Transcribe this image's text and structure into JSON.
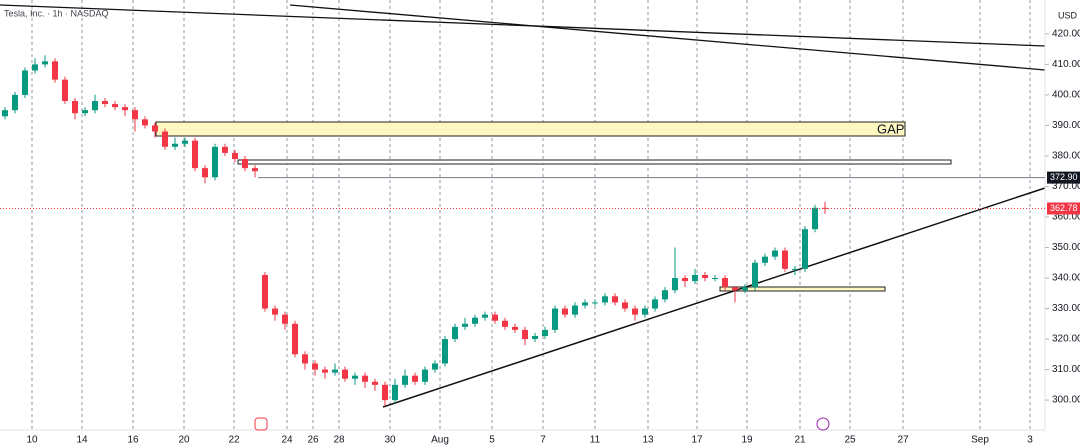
{
  "chart_data": {
    "type": "candlestick",
    "title": "Tesla, Inc. · 1h · NASDAQ",
    "currency": "USD",
    "xlim": [
      0,
      209
    ],
    "xticks": [
      {
        "value": 6.4,
        "label": "10"
      },
      {
        "value": 16.4,
        "label": "14"
      },
      {
        "value": 26.6,
        "label": "16"
      },
      {
        "value": 36.8,
        "label": "20"
      },
      {
        "value": 46.8,
        "label": "22"
      },
      {
        "value": 57.4,
        "label": "24"
      },
      {
        "value": 62.6,
        "label": "26"
      },
      {
        "value": 67.8,
        "label": "28"
      },
      {
        "value": 78,
        "label": "30"
      },
      {
        "value": 88,
        "label": "Aug"
      },
      {
        "value": 98.4,
        "label": "5"
      },
      {
        "value": 108.6,
        "label": "7"
      },
      {
        "value": 119,
        "label": "11"
      },
      {
        "value": 129.6,
        "label": "13"
      },
      {
        "value": 139.4,
        "label": "17"
      },
      {
        "value": 149.4,
        "label": "19"
      },
      {
        "value": 160,
        "label": "21"
      },
      {
        "value": 170,
        "label": "25"
      },
      {
        "value": 180.6,
        "label": "27"
      },
      {
        "value": 196,
        "label": "Sep"
      },
      {
        "value": 206,
        "label": "3"
      }
    ],
    "ylim": [
      290.2,
      431.1
    ],
    "yticks": [
      {
        "value": 300,
        "label": "300.00"
      },
      {
        "value": 310,
        "label": "310.00"
      },
      {
        "value": 320,
        "label": "320.00"
      },
      {
        "value": 330,
        "label": "330.00"
      },
      {
        "value": 340,
        "label": "340.00"
      },
      {
        "value": 350,
        "label": "350.00"
      },
      {
        "value": 360,
        "label": "360.00"
      },
      {
        "value": 370,
        "label": "370.00"
      },
      {
        "value": 380,
        "label": "380.00"
      },
      {
        "value": 390,
        "label": "390.00"
      },
      {
        "value": 400,
        "label": "400.00"
      },
      {
        "value": 410,
        "label": "410.00"
      },
      {
        "value": 420,
        "label": "420.00"
      }
    ],
    "grid": true,
    "up_color": "#089981",
    "down_color": "#f23645",
    "x": [
      1,
      3,
      5,
      7,
      9,
      11,
      13,
      15,
      17,
      19,
      21,
      23,
      25,
      27,
      29,
      31,
      33,
      35,
      37,
      39,
      41,
      43,
      45,
      47,
      49,
      51,
      53,
      55,
      57,
      59,
      61,
      63,
      65,
      67,
      69,
      71,
      73,
      75,
      77,
      79,
      81,
      83,
      85,
      87,
      89,
      91,
      93,
      95,
      97,
      99,
      101,
      103,
      105,
      107,
      109,
      111,
      113,
      115,
      117,
      119,
      121,
      123,
      125,
      127,
      129,
      131,
      133,
      135,
      137,
      139,
      141,
      143,
      145,
      147,
      149,
      151,
      153,
      155,
      157,
      159,
      161,
      163,
      165
    ],
    "open": [
      393,
      395,
      400,
      408,
      410,
      411,
      405,
      398,
      394,
      395,
      398,
      397,
      396,
      395,
      392,
      390,
      388,
      383,
      384,
      385,
      376,
      373,
      383,
      381,
      379,
      376,
      341,
      330,
      328,
      325,
      315,
      312,
      310,
      309,
      310,
      307,
      308,
      306,
      305,
      300,
      305,
      308,
      306,
      310,
      312,
      320,
      324,
      325,
      327,
      328,
      326,
      324,
      323,
      320,
      321,
      323,
      330,
      328,
      331,
      332,
      332,
      334,
      332,
      330,
      328,
      330,
      333,
      336,
      340,
      339,
      341,
      340,
      340,
      337,
      336,
      337,
      345,
      347,
      349,
      343,
      343,
      356,
      363
    ],
    "high": [
      396,
      401,
      409,
      412,
      413,
      412,
      406,
      399,
      396,
      400,
      399,
      398,
      397,
      396,
      393,
      391,
      389,
      386,
      386,
      386,
      377,
      384,
      384,
      382,
      380,
      377,
      342,
      331,
      329,
      326,
      316,
      313,
      311,
      312,
      311,
      309,
      309,
      307,
      306,
      307,
      310,
      309,
      311,
      313,
      321,
      325,
      327,
      328,
      329,
      329,
      327,
      325,
      324,
      322,
      324,
      331,
      331,
      332,
      333,
      333,
      335,
      335,
      333,
      331,
      331,
      334,
      337,
      350,
      341,
      343,
      342,
      341,
      341,
      337,
      338,
      346,
      348,
      350,
      350,
      344,
      357,
      364,
      365
    ],
    "low": [
      392,
      394,
      399,
      407,
      409,
      404,
      397,
      392,
      393,
      394,
      396,
      395,
      393,
      388,
      389,
      386,
      382,
      382,
      383,
      375,
      371,
      372,
      380,
      378,
      375,
      373,
      329,
      326,
      323,
      314,
      310,
      308,
      307,
      308,
      306,
      305,
      304,
      303,
      298,
      299,
      304,
      305,
      305,
      309,
      311,
      319,
      323,
      324,
      326,
      325,
      323,
      322,
      318,
      319,
      320,
      322,
      327,
      327,
      330,
      331,
      331,
      331,
      329,
      326,
      327,
      329,
      332,
      335,
      337,
      338,
      339,
      339,
      336,
      332,
      335,
      336,
      344,
      346,
      342,
      341,
      342,
      355,
      361
    ],
    "close": [
      395,
      400,
      408,
      410,
      411,
      405,
      398,
      394,
      395,
      398,
      397,
      396,
      395,
      392,
      390,
      388,
      383,
      384,
      385,
      376,
      373,
      383,
      381,
      379,
      376,
      375,
      330,
      328,
      325,
      315,
      312,
      310,
      309,
      310,
      307,
      308,
      306,
      305,
      300,
      305,
      308,
      306,
      310,
      312,
      320,
      324,
      325,
      327,
      328,
      326,
      324,
      323,
      320,
      321,
      323,
      330,
      328,
      331,
      332,
      332,
      334,
      332,
      330,
      328,
      330,
      333,
      336,
      340,
      339,
      341,
      340,
      340,
      337,
      336,
      337,
      345,
      347,
      349,
      343,
      343,
      356,
      363,
      362.78
    ],
    "level": {
      "value": 372.9,
      "label": "372.90"
    },
    "last_price": {
      "value": 362.78,
      "label": "362.78"
    },
    "annotation": "GAP"
  }
}
